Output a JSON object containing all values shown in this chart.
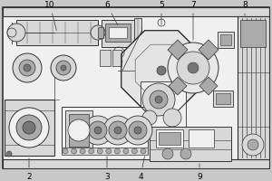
{
  "bg_color": "#c8c8c8",
  "border_color": "#333333",
  "line_color": "#444444",
  "fill_light": "#d8d8d8",
  "fill_mid": "#aaaaaa",
  "fill_dark": "#777777",
  "fill_white": "#f0f0f0",
  "label_fontsize": 6.5,
  "figw": 3.0,
  "figh": 2.0,
  "dpi": 100
}
